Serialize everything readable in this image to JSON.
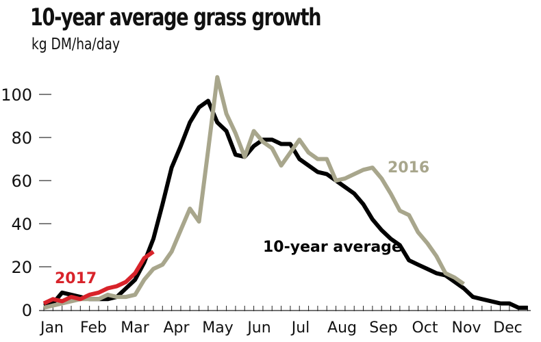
{
  "chart_data": {
    "type": "line",
    "title": "10-year average grass growth",
    "subtitle": "kg DM/ha/day",
    "xlabel": "",
    "ylabel": "",
    "ylim": [
      0,
      110
    ],
    "yticks": [
      0,
      20,
      40,
      60,
      80,
      100
    ],
    "xtick_labels": [
      "Jan",
      "Feb",
      "Mar",
      "Apr",
      "May",
      "Jun",
      "Jul",
      "Aug",
      "Sep",
      "Oct",
      "Nov",
      "Dec"
    ],
    "x_unit": "week",
    "grid": false,
    "series": [
      {
        "name": "10-year average",
        "color": "#000000",
        "values": [
          2,
          3,
          8,
          7,
          6,
          5,
          5,
          5,
          6,
          10,
          14,
          22,
          33,
          49,
          66,
          76,
          87,
          94,
          97,
          87,
          83,
          72,
          71,
          76,
          79,
          79,
          77,
          77,
          70,
          67,
          64,
          63,
          60,
          57,
          54,
          49,
          42,
          37,
          33,
          30,
          23,
          21,
          19,
          17,
          16,
          13,
          10,
          6,
          5,
          4,
          3,
          3,
          1,
          1
        ]
      },
      {
        "name": "2016",
        "color": "#a8a68c",
        "values": [
          1,
          2,
          3,
          4,
          5,
          5,
          5,
          7,
          6,
          6,
          7,
          14,
          19,
          21,
          27,
          37,
          47,
          41,
          74,
          108,
          91,
          82,
          71,
          83,
          78,
          75,
          67,
          73,
          79,
          73,
          70,
          70,
          60,
          61,
          63,
          65,
          66,
          61,
          54,
          46,
          44,
          36,
          31,
          25,
          17,
          15,
          12
        ]
      },
      {
        "name": "2017",
        "color": "#d8232a",
        "values": [
          3,
          5,
          4,
          6,
          5,
          7,
          8,
          10,
          11,
          13,
          17,
          24,
          27
        ]
      }
    ]
  }
}
